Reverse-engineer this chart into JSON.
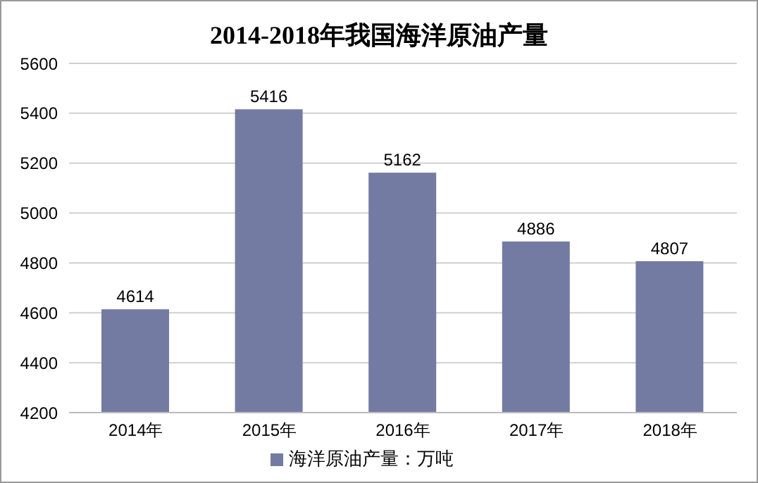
{
  "chart_data": {
    "type": "bar",
    "title": "2014-2018年我国海洋原油产量",
    "categories": [
      "2014年",
      "2015年",
      "2016年",
      "2017年",
      "2018年"
    ],
    "series": [
      {
        "name": "海洋原油产量：万吨",
        "color": "#737ba3",
        "values": [
          4614,
          5416,
          5162,
          4886,
          4807
        ]
      }
    ],
    "ylim": [
      4200,
      5600
    ],
    "yticks": [
      4200,
      4400,
      4600,
      4800,
      5000,
      5200,
      5400,
      5600
    ],
    "grid": "y",
    "legend": "bottom",
    "data_labels": true
  }
}
